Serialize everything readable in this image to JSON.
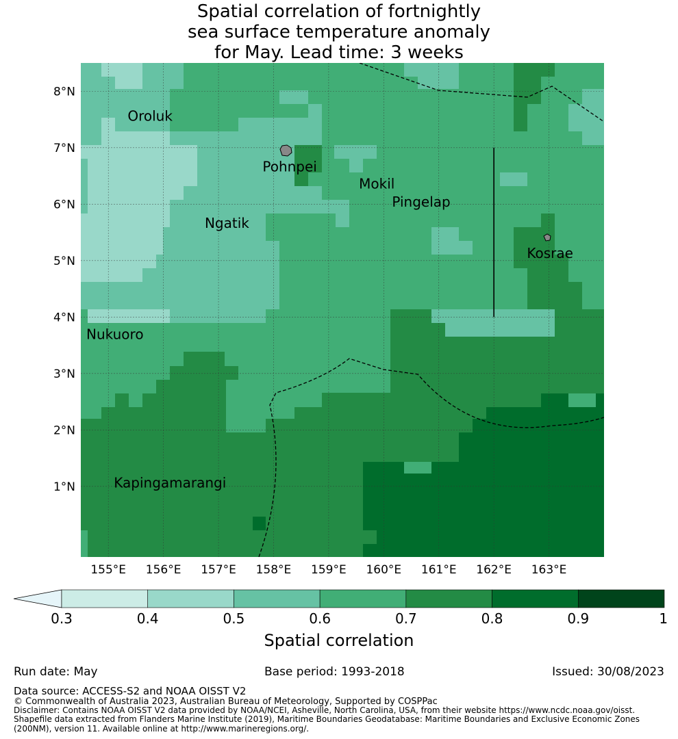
{
  "title": {
    "line1": "Spatial correlation of fortnightly",
    "line2": "sea surface temperature anomaly",
    "line3": "for May. Lead time: 3 weeks"
  },
  "map": {
    "lon_range": [
      154.5,
      164.0
    ],
    "lat_range": [
      -0.25,
      8.5
    ],
    "lat_ticks": [
      {
        "value": 1,
        "label": "1°N"
      },
      {
        "value": 2,
        "label": "2°N"
      },
      {
        "value": 3,
        "label": "3°N"
      },
      {
        "value": 4,
        "label": "4°N"
      },
      {
        "value": 5,
        "label": "5°N"
      },
      {
        "value": 6,
        "label": "6°N"
      },
      {
        "value": 7,
        "label": "7°N"
      },
      {
        "value": 8,
        "label": "8°N"
      }
    ],
    "lon_ticks": [
      {
        "value": 155,
        "label": "155°E"
      },
      {
        "value": 156,
        "label": "156°E"
      },
      {
        "value": 157,
        "label": "157°E"
      },
      {
        "value": 158,
        "label": "158°E"
      },
      {
        "value": 159,
        "label": "159°E"
      },
      {
        "value": 160,
        "label": "160°E"
      },
      {
        "value": 161,
        "label": "161°E"
      },
      {
        "value": 162,
        "label": "162°E"
      },
      {
        "value": 163,
        "label": "163°E"
      }
    ],
    "places": [
      {
        "name": "Oroluk",
        "lon": 155.35,
        "lat": 7.55
      },
      {
        "name": "Pohnpei",
        "lon": 157.8,
        "lat": 6.65
      },
      {
        "name": "Mokil",
        "lon": 159.55,
        "lat": 6.35
      },
      {
        "name": "Pingelap",
        "lon": 160.15,
        "lat": 6.03
      },
      {
        "name": "Ngatik",
        "lon": 156.75,
        "lat": 5.65
      },
      {
        "name": "Kosrae",
        "lon": 162.6,
        "lat": 5.12
      },
      {
        "name": "Nukuoro",
        "lon": 154.6,
        "lat": 3.68
      },
      {
        "name": "Kapingamarangi",
        "lon": 155.1,
        "lat": 1.05
      }
    ],
    "boundary_line_lon": 162.0,
    "boundary_line_lat": [
      4.0,
      7.0
    ]
  },
  "colorbar": {
    "colors": [
      "#e6f5f9",
      "#ccece6",
      "#99d8c9",
      "#66c2a4",
      "#41ae76",
      "#238b45",
      "#006d2c",
      "#00441b"
    ],
    "ticks": [
      "0.3",
      "0.4",
      "0.5",
      "0.6",
      "0.7",
      "0.8",
      "0.9",
      "1"
    ],
    "label": "Spatial correlation"
  },
  "footer": {
    "run_date": "Run date: May",
    "base_period": "Base period: 1993-2018",
    "issued": "Issued: 30/08/2023",
    "data_source": "Data source: ACCESS-S2 and NOAA OISST V2",
    "copyright": "© Commonwealth of Australia 2023, Australian Bureau of Meteorology, Supported by COSPPac",
    "disclaimer": "Disclaimer: Contains NOAA OISST V2 data provided by NOAA/NCEI, Asheville, North Carolina, USA, from their website https://www.ncdc.noaa.gov/oisst.",
    "shapefile_1": "Shapefile data extracted from Flanders Marine Institute (2019), Maritime Boundaries Geodatabase: Maritime Boundaries and Exclusive Economic Zones",
    "shapefile_2": "(200NM), version 11. Available online at http://www.marineregions.org/."
  }
}
